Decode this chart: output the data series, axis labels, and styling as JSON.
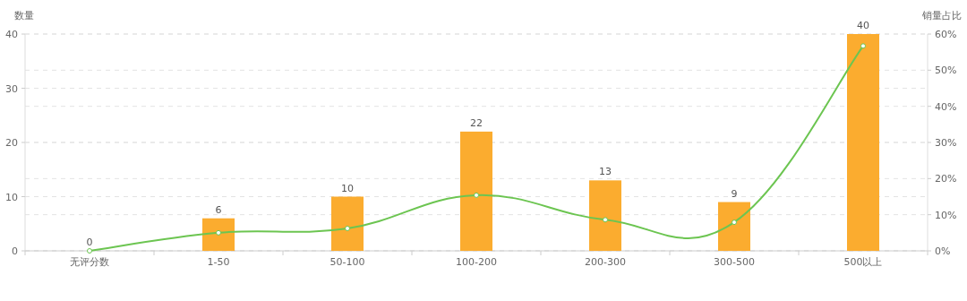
{
  "chart_data": {
    "type": "bar",
    "ylabel": "数量",
    "y2label": "销量占比",
    "categories": [
      "无评分数",
      "1-50",
      "50-100",
      "100-200",
      "200-300",
      "300-500",
      "500以上"
    ],
    "series": [
      {
        "color": "#fbac2f",
        "values": [
          0,
          6,
          10,
          22,
          13,
          9,
          40
        ],
        "data_labels": true
      },
      {
        "type": "line",
        "axis": "y2",
        "color": "#6cc551",
        "marker": "circle",
        "values": [
          0,
          5.0,
          6.2,
          15.4,
          8.6,
          7.9,
          56.7
        ]
      }
    ],
    "ylim": [
      0,
      40
    ],
    "yticks": [
      0,
      10,
      20,
      30,
      40
    ],
    "y2lim": [
      0,
      60
    ],
    "y2ticks": [
      {
        "value": 0,
        "label": "0%"
      },
      {
        "value": 10,
        "label": "10%"
      },
      {
        "value": 20,
        "label": "20%"
      },
      {
        "value": 30,
        "label": "30%"
      },
      {
        "value": 40,
        "label": "40%"
      },
      {
        "value": 50,
        "label": "50%"
      },
      {
        "value": 60,
        "label": "60%"
      }
    ],
    "grid": "y"
  }
}
